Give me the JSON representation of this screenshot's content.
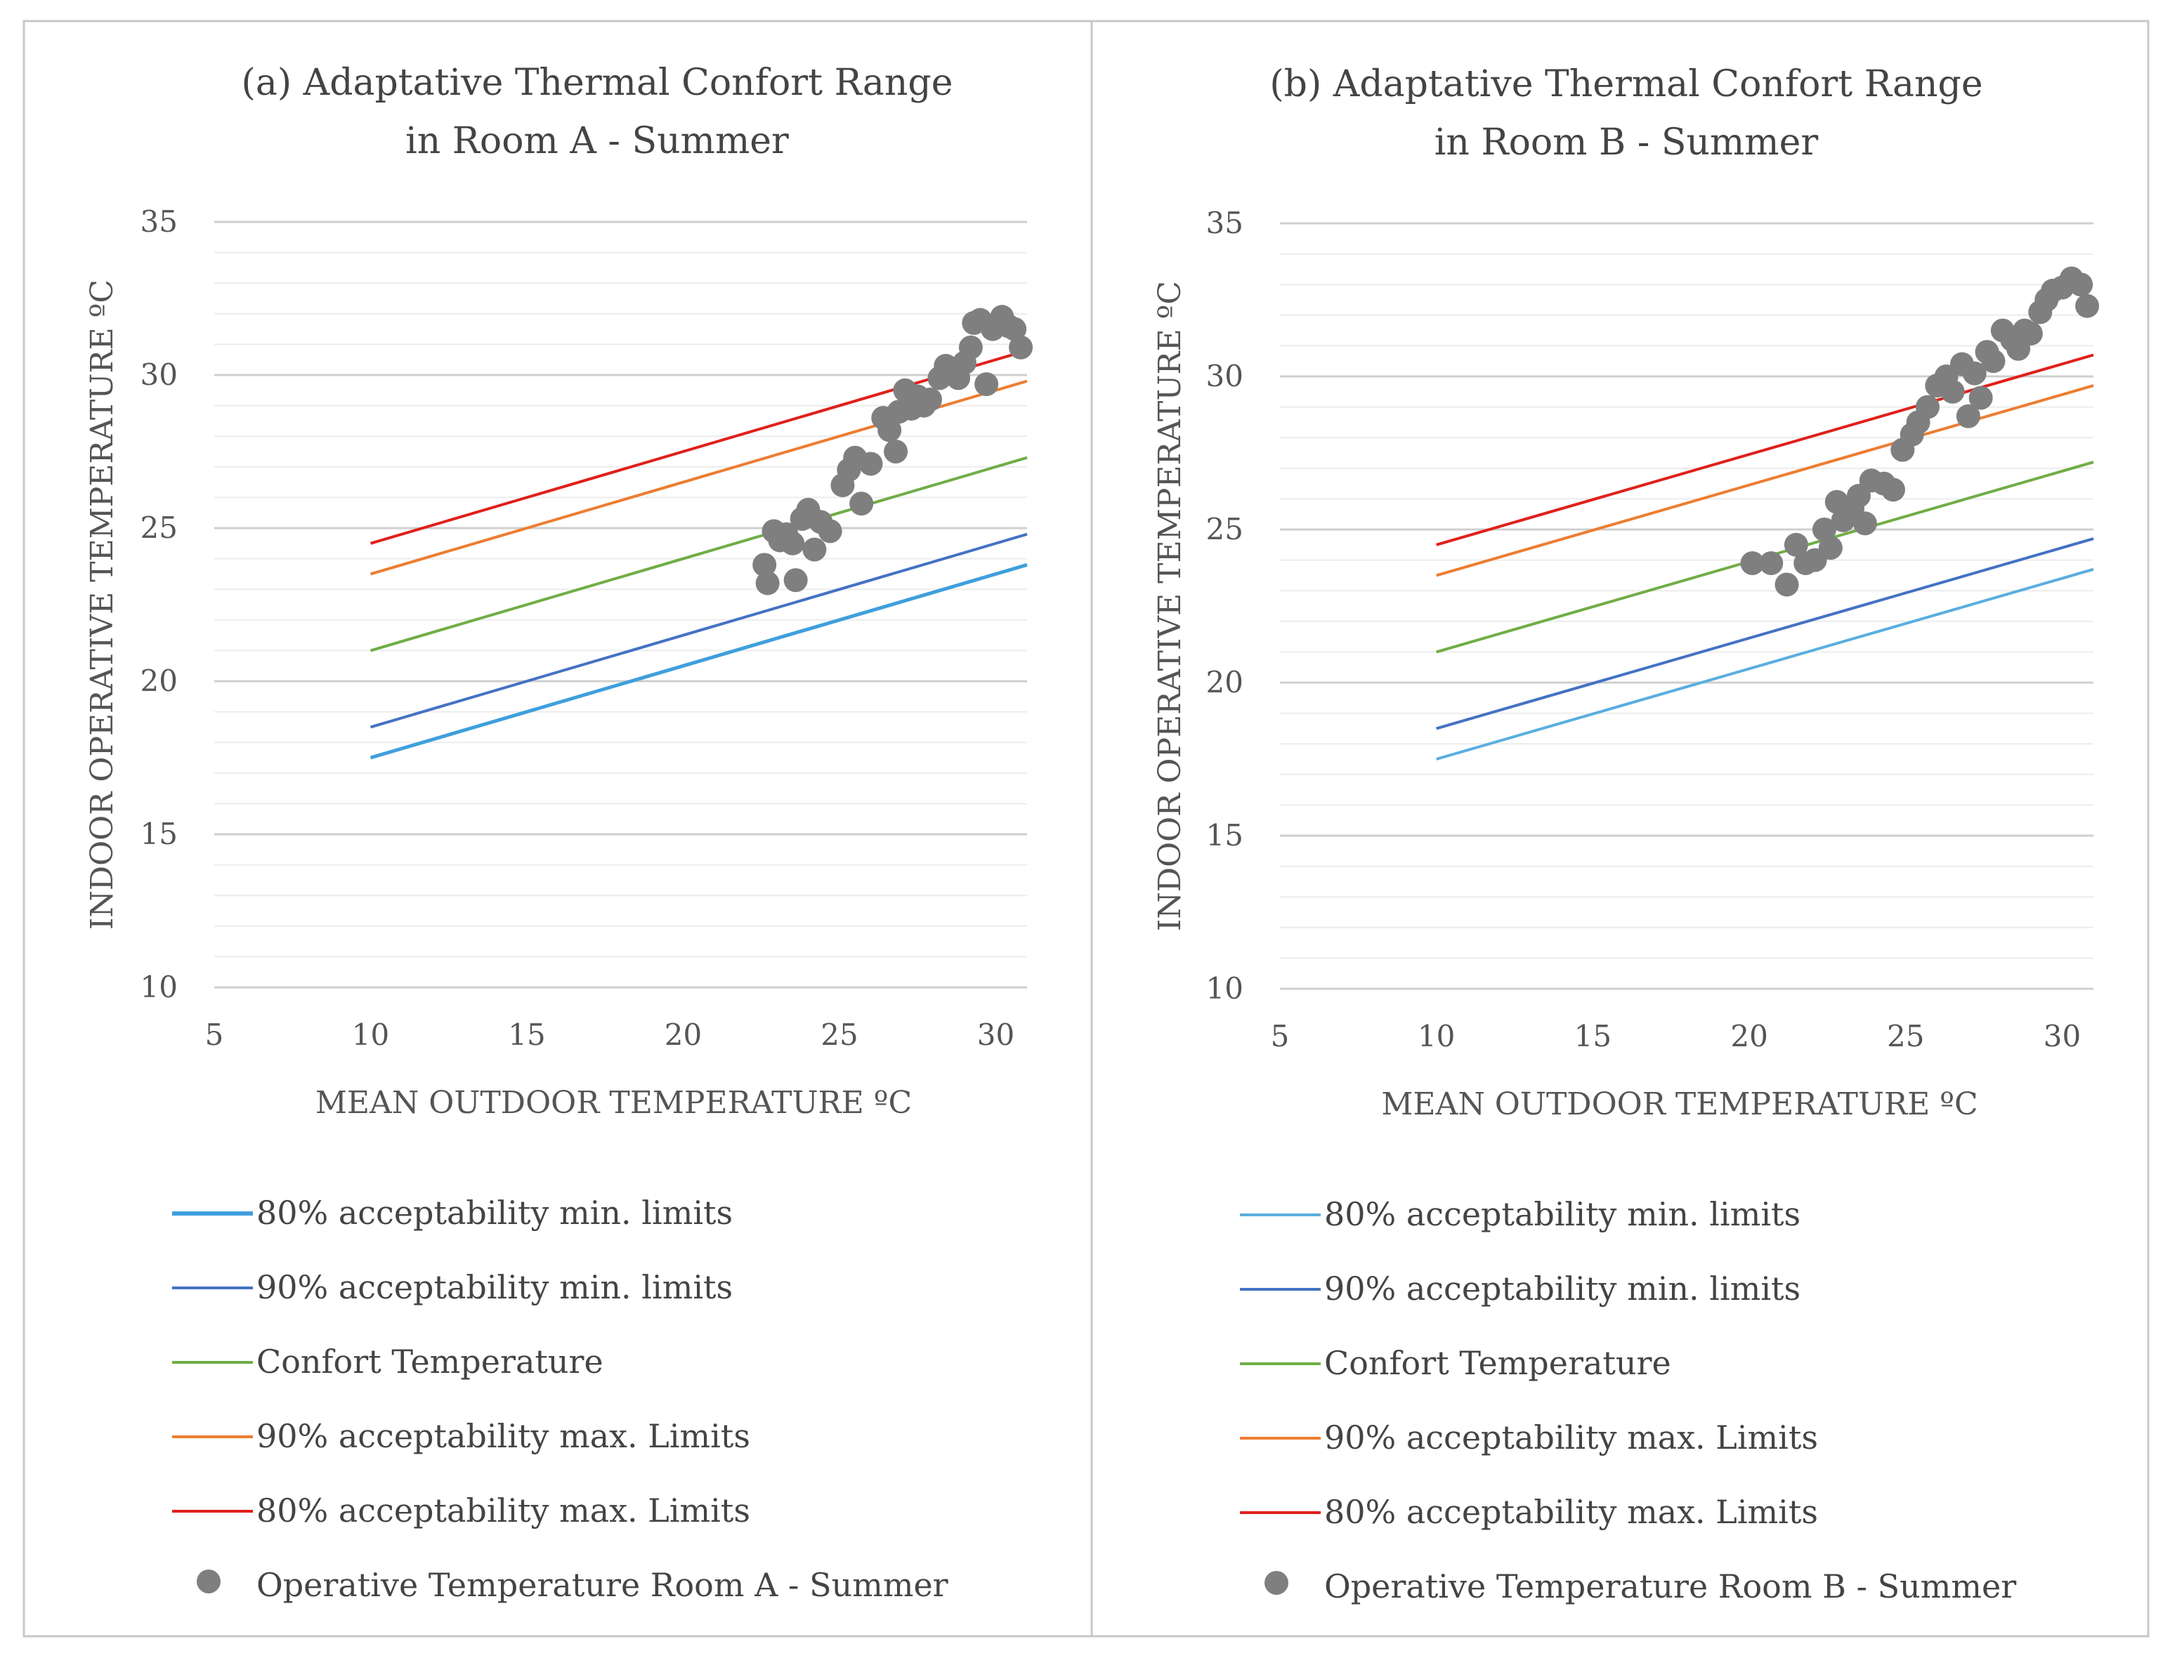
{
  "chart_data": [
    {
      "type": "scatter",
      "title": [
        "(a) Adaptative Thermal Confort Range",
        "in Room A - Summer"
      ],
      "xlabel": "MEAN OUTDOOR TEMPERATURE  ºC",
      "ylabel": "INDOOR OPERATIVE TEMPERATURE  ºC",
      "xlim": [
        5,
        31
      ],
      "ylim": [
        10,
        35
      ],
      "xticks": [
        5,
        10,
        15,
        20,
        25,
        30
      ],
      "yticks": [
        10,
        15,
        20,
        25,
        30,
        35
      ],
      "minor_grid_step": 1,
      "legend_position": "bottom",
      "series": [
        {
          "name": "80% acceptability min. limits",
          "type": "line",
          "color": "#3f9fdc",
          "x": [
            10,
            31
          ],
          "y": [
            17.5,
            23.8
          ]
        },
        {
          "name": "90% acceptability min. limits",
          "type": "line",
          "color": "#4472c4",
          "x": [
            10,
            31
          ],
          "y": [
            18.5,
            24.8
          ]
        },
        {
          "name": "Confort Temperature",
          "type": "line",
          "color": "#70ad47",
          "x": [
            10,
            31
          ],
          "y": [
            21.0,
            27.3
          ]
        },
        {
          "name": "90% acceptability max. Limits",
          "type": "line",
          "color": "#ed7d31",
          "x": [
            10,
            31
          ],
          "y": [
            23.5,
            29.8
          ]
        },
        {
          "name": "80% acceptability max. Limits",
          "type": "line",
          "color": "#e0201b",
          "x": [
            10,
            31
          ],
          "y": [
            24.5,
            30.8
          ]
        },
        {
          "name": "Operative Temperature Room A - Summer",
          "type": "scatter",
          "color": "#7f7f7f",
          "points": [
            [
              22.6,
              23.8
            ],
            [
              22.7,
              23.2
            ],
            [
              22.9,
              24.9
            ],
            [
              23.1,
              24.6
            ],
            [
              23.3,
              24.8
            ],
            [
              23.5,
              24.5
            ],
            [
              23.6,
              23.3
            ],
            [
              23.8,
              25.3
            ],
            [
              24.0,
              25.6
            ],
            [
              24.2,
              24.3
            ],
            [
              24.4,
              25.2
            ],
            [
              24.7,
              24.9
            ],
            [
              25.1,
              26.4
            ],
            [
              25.3,
              26.9
            ],
            [
              25.5,
              27.3
            ],
            [
              25.7,
              25.8
            ],
            [
              26.0,
              27.1
            ],
            [
              26.4,
              28.6
            ],
            [
              26.6,
              28.2
            ],
            [
              26.8,
              27.5
            ],
            [
              26.9,
              28.8
            ],
            [
              27.1,
              29.5
            ],
            [
              27.3,
              28.9
            ],
            [
              27.5,
              29.3
            ],
            [
              27.7,
              29.0
            ],
            [
              27.9,
              29.2
            ],
            [
              28.2,
              29.9
            ],
            [
              28.4,
              30.3
            ],
            [
              28.6,
              30.1
            ],
            [
              28.8,
              29.9
            ],
            [
              29.0,
              30.4
            ],
            [
              29.2,
              30.9
            ],
            [
              29.3,
              31.7
            ],
            [
              29.5,
              31.8
            ],
            [
              29.7,
              29.7
            ],
            [
              29.9,
              31.5
            ],
            [
              30.2,
              31.9
            ],
            [
              30.4,
              31.6
            ],
            [
              30.6,
              31.5
            ],
            [
              30.8,
              30.9
            ]
          ]
        }
      ]
    },
    {
      "type": "scatter",
      "title": [
        "(b) Adaptative Thermal Confort Range",
        "in Room B - Summer"
      ],
      "xlabel": "MEAN OUTDOOR TEMPERATURE  ºC",
      "ylabel": "INDOOR OPERATIVE TEMPERATURE  ºC",
      "xlim": [
        5,
        31
      ],
      "ylim": [
        10,
        35
      ],
      "xticks": [
        5,
        10,
        15,
        20,
        25,
        30
      ],
      "yticks": [
        10,
        15,
        20,
        25,
        30,
        35
      ],
      "minor_grid_step": 1,
      "legend_position": "bottom",
      "series": [
        {
          "name": "80% acceptability min. limits",
          "type": "line",
          "color": "#5aaedf",
          "x": [
            10,
            31
          ],
          "y": [
            17.5,
            23.7
          ]
        },
        {
          "name": "90% acceptability min. limits",
          "type": "line",
          "color": "#4472c4",
          "x": [
            10,
            31
          ],
          "y": [
            18.5,
            24.7
          ]
        },
        {
          "name": "Confort Temperature",
          "type": "line",
          "color": "#70ad47",
          "x": [
            10,
            31
          ],
          "y": [
            21.0,
            27.2
          ]
        },
        {
          "name": "90% acceptability max. Limits",
          "type": "line",
          "color": "#ed7d31",
          "x": [
            10,
            31
          ],
          "y": [
            23.5,
            29.7
          ]
        },
        {
          "name": "80% acceptability max. Limits",
          "type": "line",
          "color": "#e0201b",
          "x": [
            10,
            31
          ],
          "y": [
            24.5,
            30.7
          ]
        },
        {
          "name": "Operative Temperature Room B - Summer",
          "type": "scatter",
          "color": "#7f7f7f",
          "points": [
            [
              20.1,
              23.9
            ],
            [
              20.7,
              23.9
            ],
            [
              21.2,
              23.2
            ],
            [
              21.5,
              24.5
            ],
            [
              21.8,
              23.9
            ],
            [
              22.1,
              24.0
            ],
            [
              22.4,
              25.0
            ],
            [
              22.6,
              24.4
            ],
            [
              22.8,
              25.9
            ],
            [
              23.0,
              25.3
            ],
            [
              23.3,
              25.7
            ],
            [
              23.5,
              26.1
            ],
            [
              23.7,
              25.2
            ],
            [
              23.9,
              26.6
            ],
            [
              24.3,
              26.5
            ],
            [
              24.6,
              26.3
            ],
            [
              24.9,
              27.6
            ],
            [
              25.2,
              28.1
            ],
            [
              25.4,
              28.5
            ],
            [
              25.7,
              29.0
            ],
            [
              26.0,
              29.7
            ],
            [
              26.3,
              30.0
            ],
            [
              26.5,
              29.5
            ],
            [
              26.8,
              30.4
            ],
            [
              27.0,
              28.7
            ],
            [
              27.2,
              30.1
            ],
            [
              27.4,
              29.3
            ],
            [
              27.6,
              30.8
            ],
            [
              27.8,
              30.5
            ],
            [
              28.1,
              31.5
            ],
            [
              28.4,
              31.2
            ],
            [
              28.6,
              30.9
            ],
            [
              28.8,
              31.5
            ],
            [
              29.0,
              31.4
            ],
            [
              29.3,
              32.1
            ],
            [
              29.5,
              32.5
            ],
            [
              29.7,
              32.8
            ],
            [
              30.0,
              32.9
            ],
            [
              30.3,
              33.2
            ],
            [
              30.6,
              33.0
            ],
            [
              30.8,
              32.3
            ]
          ]
        }
      ]
    }
  ]
}
